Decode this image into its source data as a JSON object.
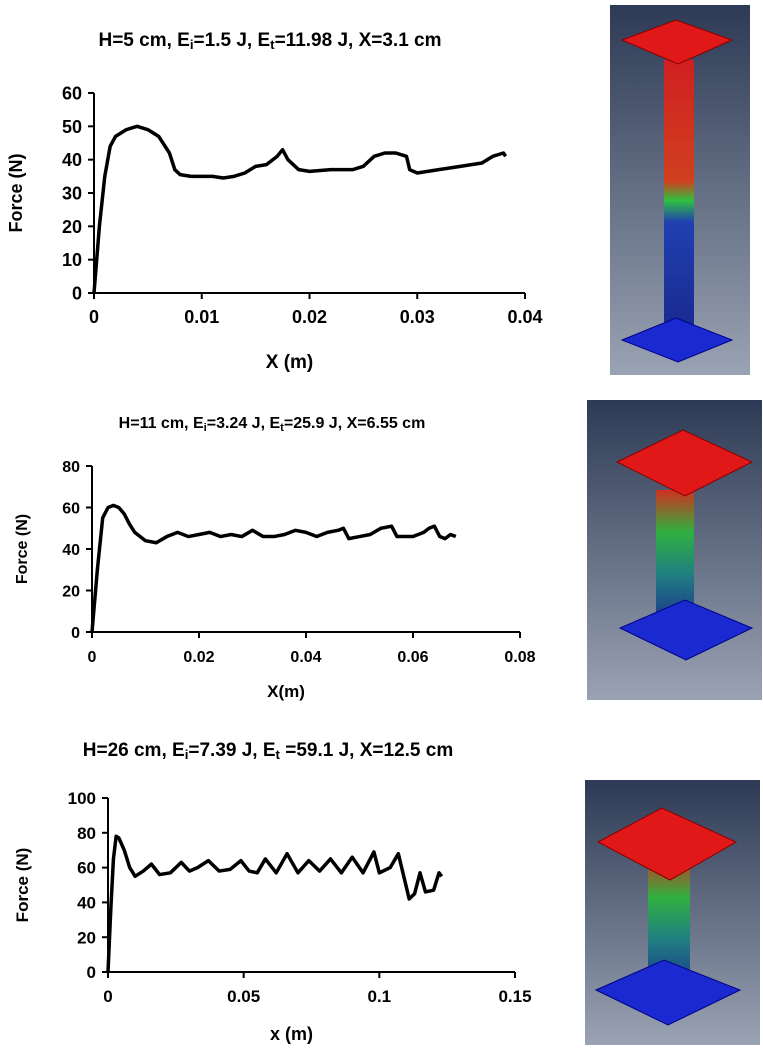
{
  "chart_data": [
    {
      "type": "line",
      "title": [
        "H=5 cm, E",
        "i",
        "=1.5 J, E",
        "t",
        "=11.98 J, X=3.1 cm"
      ],
      "x_label": "X (m)",
      "y_label": "Force (N)",
      "color": "#000000",
      "xlim": [
        0,
        0.04
      ],
      "xticks": [
        0,
        0.01,
        0.02,
        0.03,
        0.04
      ],
      "ylim": [
        0,
        60
      ],
      "yticks": [
        0,
        10,
        20,
        30,
        40,
        50,
        60
      ],
      "x": [
        0,
        0.0005,
        0.001,
        0.0015,
        0.002,
        0.003,
        0.004,
        0.005,
        0.006,
        0.007,
        0.0075,
        0.008,
        0.009,
        0.01,
        0.011,
        0.012,
        0.013,
        0.014,
        0.015,
        0.016,
        0.017,
        0.0175,
        0.018,
        0.019,
        0.02,
        0.022,
        0.024,
        0.025,
        0.026,
        0.027,
        0.028,
        0.029,
        0.0293,
        0.03,
        0.032,
        0.034,
        0.036,
        0.037,
        0.038,
        0.0382
      ],
      "values": [
        0,
        20,
        35,
        44,
        47,
        49,
        50,
        49,
        47,
        42,
        37,
        35.5,
        35,
        35,
        35,
        34.5,
        35,
        36,
        38,
        38.5,
        41,
        43,
        40,
        37,
        36.5,
        37,
        37,
        38,
        41,
        42,
        42,
        41,
        37,
        36,
        37,
        38,
        39,
        41,
        42,
        41
      ]
    },
    {
      "type": "line",
      "title": [
        "H=11 cm, E",
        "i",
        "=3.24 J, E",
        "t",
        "=25.9 J, X=6.55 cm"
      ],
      "x_label": "X(m)",
      "y_label": "Force (N)",
      "color": "#000000",
      "xlim": [
        0,
        0.08
      ],
      "xticks": [
        0,
        0.02,
        0.04,
        0.06,
        0.08
      ],
      "ylim": [
        0,
        80
      ],
      "yticks": [
        0,
        20,
        40,
        60,
        80
      ],
      "x": [
        0,
        0.001,
        0.002,
        0.003,
        0.004,
        0.005,
        0.006,
        0.007,
        0.008,
        0.01,
        0.012,
        0.014,
        0.016,
        0.018,
        0.02,
        0.022,
        0.024,
        0.026,
        0.028,
        0.03,
        0.032,
        0.034,
        0.036,
        0.038,
        0.04,
        0.042,
        0.044,
        0.046,
        0.047,
        0.048,
        0.05,
        0.052,
        0.054,
        0.056,
        0.057,
        0.06,
        0.062,
        0.063,
        0.064,
        0.065,
        0.066,
        0.067,
        0.068
      ],
      "values": [
        0,
        30,
        55,
        60,
        61,
        60,
        57,
        52,
        48,
        44,
        43,
        46,
        48,
        46,
        47,
        48,
        46,
        47,
        46,
        49,
        46,
        46,
        47,
        49,
        48,
        46,
        48,
        49,
        50,
        45,
        46,
        47,
        50,
        51,
        46,
        46,
        48,
        50,
        51,
        46,
        45,
        47,
        46
      ]
    },
    {
      "type": "line",
      "title": [
        "H=26 cm, E",
        "i",
        "=7.39 J, E",
        "t",
        " =59.1 J, X=12.5 cm"
      ],
      "x_label": "x (m)",
      "y_label": "Force (N)",
      "color": "#000000",
      "xlim": [
        0,
        0.15
      ],
      "xticks": [
        0,
        0.05,
        0.1,
        0.15
      ],
      "ylim": [
        0,
        100
      ],
      "yticks": [
        0,
        20,
        40,
        60,
        80,
        100
      ],
      "x": [
        0,
        0.001,
        0.002,
        0.003,
        0.004,
        0.006,
        0.008,
        0.01,
        0.013,
        0.016,
        0.019,
        0.023,
        0.027,
        0.03,
        0.033,
        0.037,
        0.041,
        0.045,
        0.049,
        0.052,
        0.055,
        0.058,
        0.062,
        0.066,
        0.07,
        0.074,
        0.078,
        0.082,
        0.086,
        0.09,
        0.094,
        0.098,
        0.1,
        0.104,
        0.107,
        0.109,
        0.111,
        0.113,
        0.115,
        0.117,
        0.12,
        0.122,
        0.123
      ],
      "values": [
        0,
        35,
        65,
        78,
        77,
        70,
        60,
        55,
        58,
        62,
        56,
        57,
        63,
        58,
        60,
        64,
        58,
        59,
        64,
        58,
        57,
        65,
        57,
        68,
        57,
        64,
        58,
        65,
        57,
        66,
        57,
        69,
        57,
        60,
        68,
        55,
        42,
        45,
        57,
        46,
        47,
        57,
        55
      ]
    }
  ]
}
